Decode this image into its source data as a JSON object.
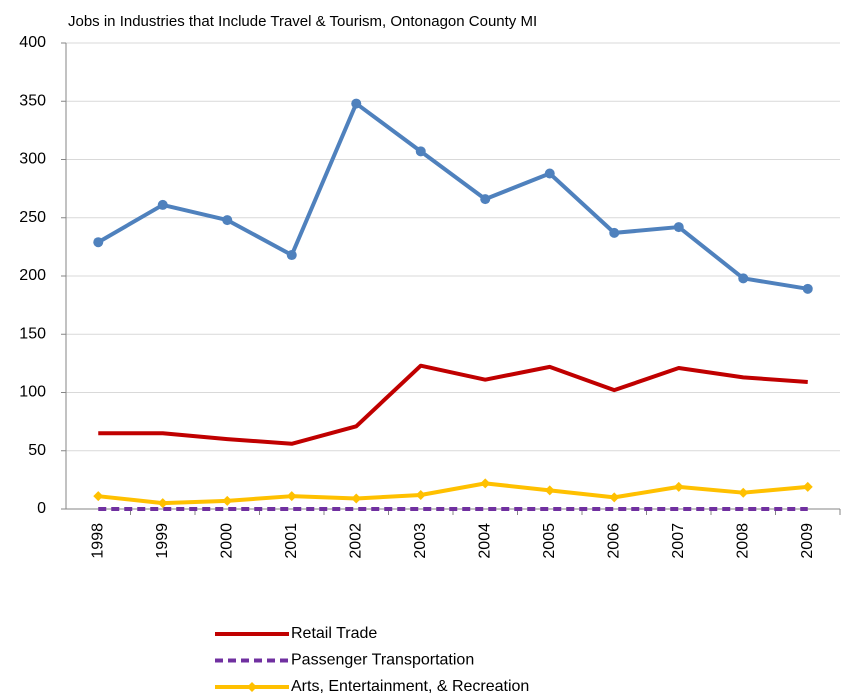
{
  "chart_data": {
    "type": "line",
    "title": "Jobs in Industries that Include Travel & Tourism, Ontonagon County MI",
    "categories": [
      "1998",
      "1999",
      "2000",
      "2001",
      "2002",
      "2003",
      "2004",
      "2005",
      "2006",
      "2007",
      "2008",
      "2009"
    ],
    "series": [
      {
        "color": "#4f81bd",
        "marker": "circle",
        "values": [
          229,
          261,
          248,
          218,
          348,
          307,
          266,
          288,
          237,
          242,
          198,
          189
        ]
      },
      {
        "name": "Retail Trade",
        "color": "#c00000",
        "marker": "none",
        "values": [
          65,
          65,
          60,
          56,
          71,
          123,
          111,
          122,
          102,
          121,
          113,
          109
        ]
      },
      {
        "name": "Passenger Transportation",
        "color": "#7030a0",
        "marker": "none",
        "dashed": true,
        "values": [
          0,
          0,
          0,
          0,
          0,
          0,
          0,
          0,
          0,
          0,
          0,
          0
        ]
      },
      {
        "name": "Arts, Entertainment, & Recreation",
        "color": "#ffc000",
        "marker": "diamond",
        "values": [
          11,
          5,
          7,
          11,
          9,
          12,
          22,
          16,
          10,
          19,
          14,
          19
        ]
      }
    ],
    "ylim": [
      0,
      400
    ],
    "yticks": [
      0,
      50,
      100,
      150,
      200,
      250,
      300,
      350,
      400
    ],
    "grid": true,
    "legend": "bottom"
  }
}
